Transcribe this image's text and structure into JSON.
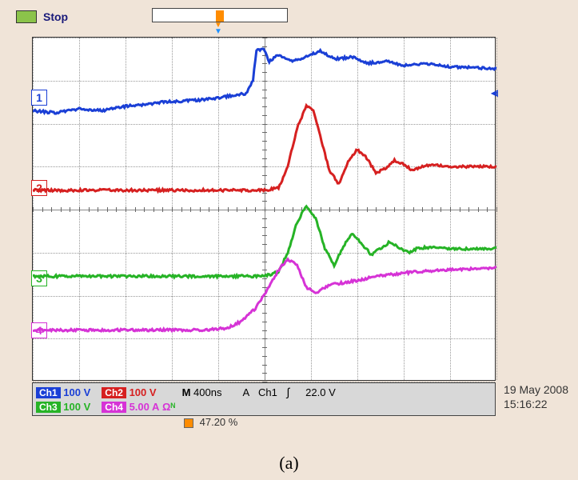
{
  "scope": {
    "run_state": "Stop",
    "trigger_position_pct": 47.2,
    "timestamp_date": "19 May 2008",
    "timestamp_time": "15:16:22",
    "caption": "(a)",
    "grid": {
      "cols": 10,
      "rows": 8,
      "color": "#b8b8b8"
    },
    "background": "#ffffff",
    "frame_bg": "#f0e4d8",
    "timebase": {
      "label": "M",
      "value": "400ns"
    },
    "trigger": {
      "source": "Ch1",
      "coupling": "A",
      "edge": "rising",
      "level": "22.0 V"
    },
    "channels": [
      {
        "id": "Ch1",
        "label": "1",
        "color": "#1a3fd6",
        "scale": "100 V",
        "label_y_div": 1.4,
        "points": [
          [
            0,
            1.7
          ],
          [
            5,
            1.75
          ],
          [
            10,
            1.65
          ],
          [
            15,
            1.7
          ],
          [
            20,
            1.6
          ],
          [
            25,
            1.55
          ],
          [
            28,
            1.5
          ],
          [
            32,
            1.48
          ],
          [
            36,
            1.45
          ],
          [
            40,
            1.4
          ],
          [
            43,
            1.35
          ],
          [
            46,
            1.3
          ],
          [
            47.5,
            1.0
          ],
          [
            48.2,
            0.3
          ],
          [
            49.8,
            0.25
          ],
          [
            51,
            0.55
          ],
          [
            53,
            0.4
          ],
          [
            56,
            0.55
          ],
          [
            59,
            0.45
          ],
          [
            62,
            0.3
          ],
          [
            65,
            0.5
          ],
          [
            69,
            0.45
          ],
          [
            72,
            0.6
          ],
          [
            76,
            0.55
          ],
          [
            80,
            0.65
          ],
          [
            85,
            0.6
          ],
          [
            90,
            0.68
          ],
          [
            95,
            0.7
          ],
          [
            100,
            0.72
          ]
        ]
      },
      {
        "id": "Ch2",
        "label": "2",
        "color": "#d62020",
        "scale": "100 V",
        "label_y_div": 3.5,
        "points": [
          [
            0,
            3.55
          ],
          [
            10,
            3.55
          ],
          [
            20,
            3.55
          ],
          [
            30,
            3.55
          ],
          [
            40,
            3.55
          ],
          [
            46,
            3.55
          ],
          [
            50,
            3.55
          ],
          [
            53,
            3.5
          ],
          [
            55,
            3.0
          ],
          [
            57,
            2.1
          ],
          [
            59,
            1.6
          ],
          [
            60.5,
            1.7
          ],
          [
            62,
            2.3
          ],
          [
            64,
            3.1
          ],
          [
            66,
            3.4
          ],
          [
            68,
            2.9
          ],
          [
            70,
            2.6
          ],
          [
            72,
            2.8
          ],
          [
            74,
            3.15
          ],
          [
            76,
            3.05
          ],
          [
            78,
            2.85
          ],
          [
            80,
            2.95
          ],
          [
            82,
            3.1
          ],
          [
            84,
            3.0
          ],
          [
            86,
            2.95
          ],
          [
            90,
            3.0
          ],
          [
            95,
            3.0
          ],
          [
            100,
            3.0
          ]
        ]
      },
      {
        "id": "Ch3",
        "label": "3",
        "color": "#26b326",
        "scale": "100 V",
        "label_y_div": 5.6,
        "points": [
          [
            0,
            5.55
          ],
          [
            10,
            5.55
          ],
          [
            20,
            5.55
          ],
          [
            30,
            5.55
          ],
          [
            40,
            5.55
          ],
          [
            46,
            5.55
          ],
          [
            50,
            5.55
          ],
          [
            53,
            5.45
          ],
          [
            55,
            5.0
          ],
          [
            57,
            4.3
          ],
          [
            59,
            3.9
          ],
          [
            61,
            4.2
          ],
          [
            63,
            4.9
          ],
          [
            65,
            5.3
          ],
          [
            67,
            4.85
          ],
          [
            69,
            4.55
          ],
          [
            71,
            4.8
          ],
          [
            73,
            5.05
          ],
          [
            75,
            4.9
          ],
          [
            77,
            4.75
          ],
          [
            79,
            4.88
          ],
          [
            81,
            5.0
          ],
          [
            83,
            4.9
          ],
          [
            85,
            4.88
          ],
          [
            90,
            4.9
          ],
          [
            95,
            4.92
          ],
          [
            100,
            4.9
          ]
        ]
      },
      {
        "id": "Ch4",
        "label": "4",
        "color": "#d633d6",
        "scale": "5.00 A",
        "impedance": "Ω",
        "label_y_div": 6.8,
        "points": [
          [
            0,
            6.8
          ],
          [
            10,
            6.8
          ],
          [
            20,
            6.8
          ],
          [
            30,
            6.8
          ],
          [
            38,
            6.8
          ],
          [
            42,
            6.75
          ],
          [
            45,
            6.6
          ],
          [
            48,
            6.3
          ],
          [
            51,
            5.8
          ],
          [
            53,
            5.4
          ],
          [
            55,
            5.15
          ],
          [
            57,
            5.3
          ],
          [
            59,
            5.8
          ],
          [
            61,
            5.95
          ],
          [
            64,
            5.75
          ],
          [
            67,
            5.7
          ],
          [
            70,
            5.65
          ],
          [
            74,
            5.55
          ],
          [
            78,
            5.5
          ],
          [
            82,
            5.45
          ],
          [
            86,
            5.42
          ],
          [
            90,
            5.4
          ],
          [
            95,
            5.38
          ],
          [
            100,
            5.35
          ]
        ]
      }
    ]
  }
}
